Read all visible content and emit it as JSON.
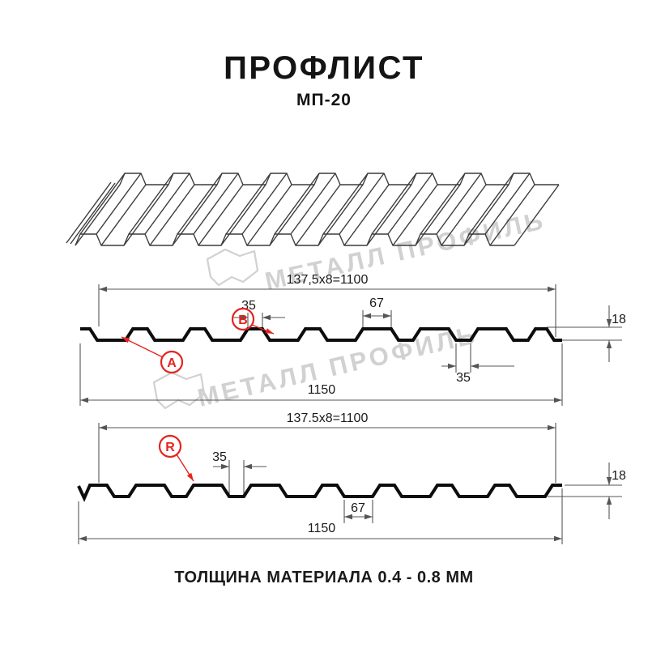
{
  "header": {
    "title": "ПРОФЛИСТ",
    "subtitle": "МП-20"
  },
  "footer": {
    "text": "ТОЛЩИНА МАТЕРИАЛА 0.4 - 0.8 ММ"
  },
  "watermark": {
    "text": "МЕТАЛЛ ПРОФИЛЬ"
  },
  "diagram_top": {
    "width_label": "137,5x8=1100",
    "rib_top_label": "35",
    "rib_base_label": "67",
    "height_label": "18",
    "valley_label": "35",
    "total_width_label": "1150",
    "side_a": "A",
    "side_b": "B"
  },
  "diagram_bottom": {
    "width_label": "137.5x8=1100",
    "valley_label": "35",
    "pan_label": "67",
    "height_label": "18",
    "total_width_label": "1150",
    "side_r": "R"
  },
  "colors": {
    "accent_red": "#e5241e",
    "profile_line": "#0d0d0d",
    "dimension_line": "#555555",
    "watermark_gray": "#c9c9c9"
  }
}
